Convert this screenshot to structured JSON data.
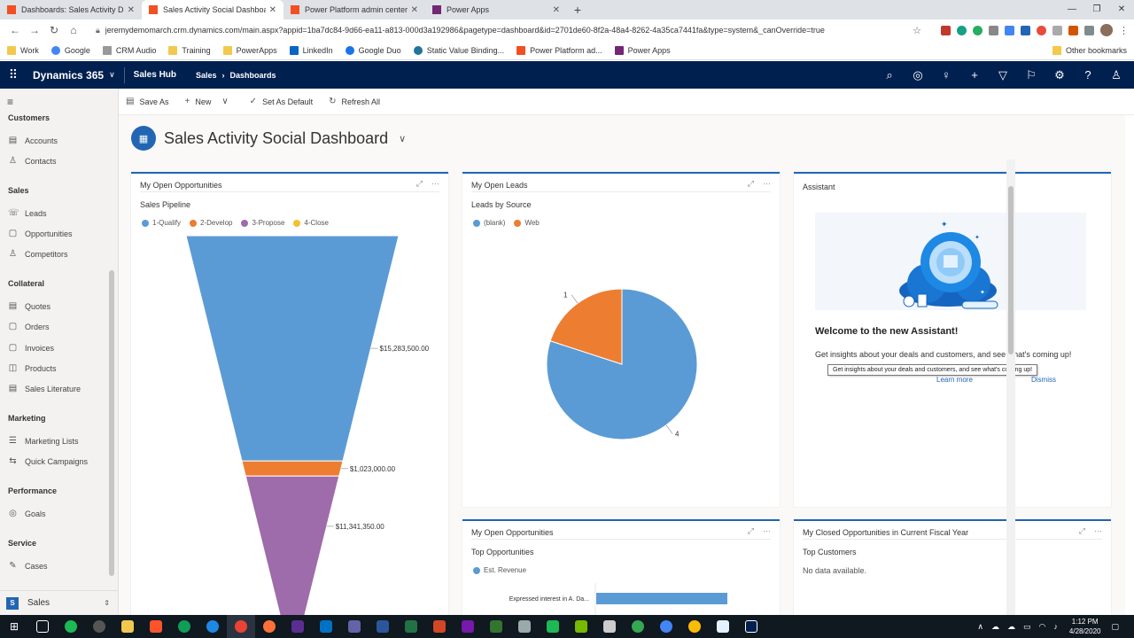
{
  "browser": {
    "tabs": [
      {
        "title": "Dashboards: Sales Activity Dashb",
        "color": "#f25022",
        "active": false
      },
      {
        "title": "Sales Activity Social Dashboard -",
        "color": "#f25022",
        "active": true
      },
      {
        "title": "Power Platform admin center",
        "color": "#f25022",
        "active": false
      },
      {
        "title": "Power Apps",
        "color": "#742774",
        "active": false
      }
    ],
    "url": "jeremydemomarch.crm.dynamics.com/main.aspx?appid=1ba7dc84-9d66-ea11-a813-000d3a192986&pagetype=dashboard&id=2701de60-8f2a-48a4-8262-4a35ca7441fa&type=system&_canOverride=true",
    "bookmarks": [
      {
        "label": "Work",
        "color": "#f2c94c"
      },
      {
        "label": "Google",
        "color": "#4285f4"
      },
      {
        "label": "CRM Audio",
        "color": "#999999"
      },
      {
        "label": "Training",
        "color": "#f2c94c"
      },
      {
        "label": "PowerApps",
        "color": "#f2c94c"
      },
      {
        "label": "LinkedIn",
        "color": "#0a66c2"
      },
      {
        "label": "Google Duo",
        "color": "#1a73e8"
      },
      {
        "label": "Static Value Binding...",
        "color": "#21759b"
      },
      {
        "label": "Power Platform ad...",
        "color": "#f25022"
      },
      {
        "label": "Power Apps",
        "color": "#742774"
      }
    ],
    "other_bookmarks": "Other bookmarks"
  },
  "header": {
    "app": "Dynamics 365",
    "hub": "Sales Hub",
    "crumb1": "Sales",
    "crumb2": "Dashboards"
  },
  "nav": {
    "groups": [
      {
        "label": "Customers",
        "items": [
          "Accounts",
          "Contacts"
        ]
      },
      {
        "label": "Sales",
        "items": [
          "Leads",
          "Opportunities",
          "Competitors"
        ]
      },
      {
        "label": "Collateral",
        "items": [
          "Quotes",
          "Orders",
          "Invoices",
          "Products",
          "Sales Literature"
        ]
      },
      {
        "label": "Marketing",
        "items": [
          "Marketing Lists",
          "Quick Campaigns"
        ]
      },
      {
        "label": "Performance",
        "items": [
          "Goals"
        ]
      },
      {
        "label": "Service",
        "items": [
          "Cases"
        ]
      }
    ],
    "area_letter": "S",
    "area": "Sales"
  },
  "commands": {
    "save_as": "Save As",
    "new": "New",
    "set_default": "Set As Default",
    "refresh": "Refresh All"
  },
  "dashboard": {
    "title": "Sales Activity Social Dashboard"
  },
  "cards": {
    "opps": {
      "title": "My Open Opportunities",
      "subtitle": "Sales Pipeline"
    },
    "leads": {
      "title": "My Open Leads",
      "subtitle": "Leads by Source"
    },
    "assistant": {
      "title": "Assistant",
      "heading": "Welcome to the new Assistant!",
      "text": "Get insights about your deals and customers, and see what's coming up!",
      "tooltip": "Get insights about your deals and customers, and see what's coming up!",
      "learn_more": "Learn more",
      "dismiss": "Dismiss"
    },
    "top": {
      "title": "My Open Opportunities",
      "subtitle": "Top Opportunities"
    },
    "closed": {
      "title": "My Closed Opportunities in Current Fiscal Year",
      "subtitle": "Top Customers",
      "nodata": "No data available."
    }
  },
  "chart_data": [
    {
      "type": "funnel",
      "title": "Sales Pipeline",
      "categories": [
        "1-Qualify",
        "2-Develop",
        "3-Propose",
        "4-Close"
      ],
      "values": [
        15283500,
        1023000,
        11341350,
        null
      ],
      "labels": [
        "$15,283,500.00",
        "$1,023,000.00",
        "$11,341,350.00",
        ""
      ],
      "colors": [
        "#5b9bd5",
        "#ed7d31",
        "#9e6bab",
        "#f2c12e"
      ]
    },
    {
      "type": "pie",
      "title": "Leads by Source",
      "categories": [
        "(blank)",
        "Web"
      ],
      "values": [
        4,
        1
      ],
      "colors": [
        "#5b9bd5",
        "#ed7d31"
      ]
    },
    {
      "type": "bar",
      "title": "Top Opportunities",
      "categories": [
        "Expressed interest in A. Da..."
      ],
      "series": [
        {
          "name": "Est. Revenue",
          "values": [
            1
          ]
        }
      ],
      "colors": [
        "#5b9bd5"
      ]
    }
  ],
  "tray": {
    "time": "1:12 PM",
    "date": "4/28/2020"
  }
}
